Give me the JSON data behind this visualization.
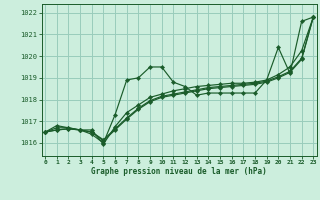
{
  "title": "Graphe pression niveau de la mer (hPa)",
  "bg_color": "#cceedd",
  "grid_color": "#99ccbb",
  "line_color": "#1a5c2a",
  "xlim": [
    -0.3,
    23.3
  ],
  "ylim": [
    1015.4,
    1022.4
  ],
  "yticks": [
    1016,
    1017,
    1018,
    1019,
    1020,
    1021,
    1022
  ],
  "xticks": [
    0,
    1,
    2,
    3,
    4,
    5,
    6,
    7,
    8,
    9,
    10,
    11,
    12,
    13,
    14,
    15,
    16,
    17,
    18,
    19,
    20,
    21,
    22,
    23
  ],
  "series": [
    [
      1016.5,
      1016.8,
      1016.7,
      1016.6,
      1016.4,
      1016.0,
      1017.3,
      1018.9,
      1019.0,
      1019.5,
      1019.5,
      1018.8,
      1018.6,
      1018.2,
      1018.3,
      1018.3,
      1018.3,
      1018.3,
      1018.3,
      1018.9,
      1020.4,
      1019.2,
      1021.6,
      1021.8
    ],
    [
      1016.5,
      1016.7,
      1016.7,
      1016.6,
      1016.6,
      1015.95,
      1016.75,
      1017.4,
      1017.75,
      1018.1,
      1018.25,
      1018.4,
      1018.5,
      1018.6,
      1018.65,
      1018.7,
      1018.75,
      1018.75,
      1018.8,
      1018.9,
      1019.15,
      1019.5,
      1020.25,
      1021.8
    ],
    [
      1016.5,
      1016.6,
      1016.65,
      1016.6,
      1016.5,
      1016.1,
      1016.6,
      1017.1,
      1017.55,
      1017.9,
      1018.1,
      1018.2,
      1018.3,
      1018.4,
      1018.5,
      1018.55,
      1018.6,
      1018.65,
      1018.7,
      1018.8,
      1019.0,
      1019.25,
      1019.85,
      1021.8
    ],
    [
      1016.5,
      1016.6,
      1016.65,
      1016.6,
      1016.5,
      1016.15,
      1016.65,
      1017.15,
      1017.6,
      1017.95,
      1018.15,
      1018.25,
      1018.35,
      1018.45,
      1018.55,
      1018.6,
      1018.65,
      1018.7,
      1018.75,
      1018.85,
      1019.05,
      1019.3,
      1019.9,
      1021.8
    ]
  ]
}
